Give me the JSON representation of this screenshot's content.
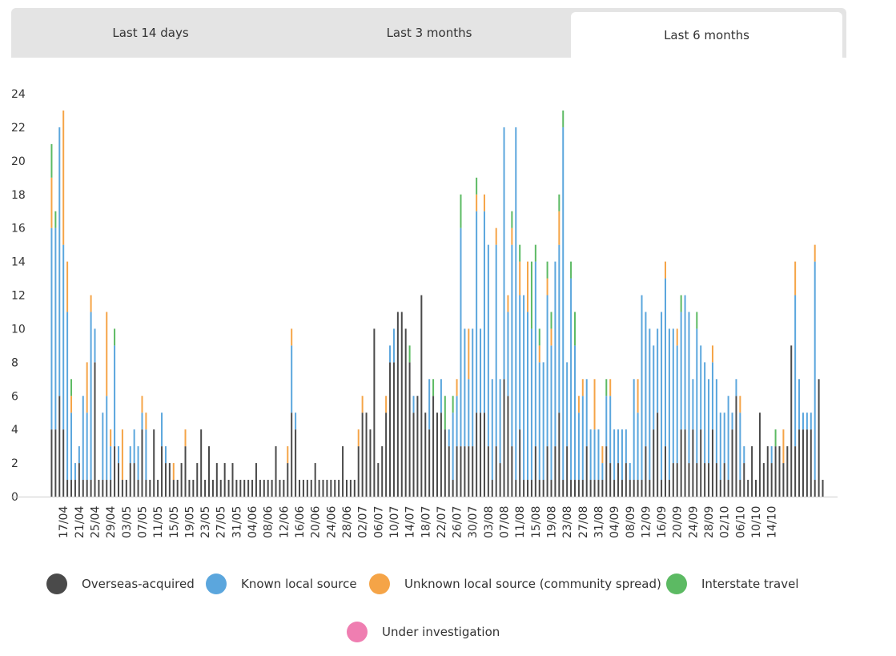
{
  "tabs": [
    {
      "label": "Last 14 days",
      "active": false
    },
    {
      "label": "Last 3 months",
      "active": false
    },
    {
      "label": "Last 6 months",
      "active": true
    }
  ],
  "legend": [
    {
      "label": "Overseas-acquired",
      "color": "#4a4a4a"
    },
    {
      "label": "Known local source",
      "color": "#5ba6dd"
    },
    {
      "label": "Unknown local source (community spread)",
      "color": "#f5a447"
    },
    {
      "label": "Interstate travel",
      "color": "#5cba63"
    },
    {
      "label": "Under investigation",
      "color": "#ef7eb1"
    }
  ],
  "chart_data": {
    "type": "bar",
    "stacked": true,
    "ylim": [
      0,
      24
    ],
    "yticks": [
      0,
      2,
      4,
      6,
      8,
      10,
      12,
      14,
      16,
      18,
      20,
      22,
      24
    ],
    "x_tick_labels": [
      "17/04",
      "21/04",
      "25/04",
      "29/04",
      "03/05",
      "07/05",
      "11/05",
      "15/05",
      "19/05",
      "23/05",
      "27/05",
      "31/05",
      "04/06",
      "08/06",
      "12/06",
      "16/06",
      "20/06",
      "24/06",
      "28/06",
      "02/07",
      "06/07",
      "10/07",
      "14/07",
      "18/07",
      "22/07",
      "26/07",
      "30/07",
      "03/08",
      "07/08",
      "11/08",
      "15/08",
      "19/08",
      "23/08",
      "27/08",
      "31/08",
      "04/09",
      "08/09",
      "12/09",
      "16/09",
      "20/09",
      "24/09",
      "28/09",
      "02/10",
      "06/10",
      "10/10",
      "14/10"
    ],
    "first_date": "14/04",
    "tick_offset": 3,
    "tick_every": 4,
    "series": [
      {
        "name": "Overseas-acquired",
        "values": [
          4,
          4,
          6,
          4,
          1,
          1,
          1,
          2,
          1,
          1,
          1,
          8,
          1,
          1,
          1,
          1,
          3,
          2,
          1,
          1,
          2,
          2,
          1,
          4,
          1,
          1,
          4,
          1,
          3,
          2,
          2,
          1,
          1,
          2,
          3,
          1,
          1,
          2,
          4,
          1,
          3,
          1,
          2,
          1,
          2,
          1,
          2,
          1,
          1,
          1,
          1,
          1,
          2,
          1,
          1,
          1,
          1,
          3,
          1,
          1,
          2,
          5,
          4,
          1,
          1,
          1,
          1,
          2,
          1,
          1,
          1,
          1,
          1,
          1,
          3,
          1,
          1,
          1,
          3,
          5,
          5,
          4,
          10,
          2,
          3,
          5,
          8,
          8,
          11,
          11,
          10,
          8,
          5,
          6,
          12,
          5,
          4,
          6,
          5,
          5,
          4,
          3,
          1,
          3,
          3,
          3,
          3,
          3,
          5,
          5,
          5,
          3,
          1,
          3,
          2,
          7,
          6,
          3,
          1,
          4,
          1,
          1,
          1,
          3,
          1,
          1,
          3,
          1,
          3,
          5,
          1,
          3,
          1,
          1,
          1,
          1,
          3,
          1,
          1,
          1,
          1,
          3,
          2,
          1,
          2,
          1,
          2,
          1,
          1,
          1,
          1,
          3,
          1,
          4,
          5,
          1,
          3,
          1,
          2,
          2,
          4,
          4,
          2,
          4,
          2,
          4,
          2,
          2,
          4,
          2,
          1,
          2,
          1,
          4,
          6,
          1,
          2,
          1,
          3,
          1,
          5,
          2,
          3,
          2,
          3,
          3,
          2,
          3,
          9,
          3,
          4,
          4,
          4,
          4,
          1,
          7,
          1
        ],
        "note": "values in data units (cases)"
      },
      {
        "name": "Known local source",
        "values": [
          12,
          12,
          16,
          11,
          10,
          4,
          1,
          1,
          5,
          4,
          10,
          2,
          0,
          4,
          5,
          2,
          6,
          1,
          0,
          0,
          1,
          2,
          2,
          1,
          3,
          0,
          0,
          0,
          2,
          1,
          0,
          0,
          0,
          0,
          0,
          0,
          0,
          0,
          0,
          0,
          0,
          0,
          0,
          0,
          0,
          0,
          0,
          0,
          0,
          0,
          0,
          0,
          0,
          0,
          0,
          0,
          0,
          0,
          0,
          0,
          0,
          4,
          1,
          0,
          0,
          0,
          0,
          0,
          0,
          0,
          0,
          0,
          0,
          0,
          0,
          0,
          0,
          0,
          0,
          0,
          0,
          0,
          0,
          0,
          0,
          0,
          1,
          2,
          0,
          0,
          0,
          0,
          1,
          0,
          0,
          0,
          3,
          0,
          0,
          2,
          0,
          1,
          4,
          3,
          13,
          7,
          4,
          7,
          12,
          5,
          12,
          12,
          6,
          12,
          5,
          15,
          5,
          12,
          21,
          8,
          11,
          10,
          9,
          11,
          7,
          7,
          9,
          8,
          11,
          10,
          21,
          5,
          12,
          8,
          4,
          5,
          4,
          3,
          3,
          3,
          1,
          3,
          4,
          3,
          2,
          3,
          2,
          1,
          6,
          4,
          11,
          8,
          9,
          5,
          5,
          10,
          10,
          9,
          8,
          7,
          7,
          8,
          9,
          3,
          8,
          5,
          6,
          5,
          4,
          5,
          4,
          3,
          5,
          1,
          1,
          4,
          1,
          0,
          0,
          0,
          0,
          0,
          0,
          1,
          0,
          0,
          0,
          0,
          0,
          9,
          3,
          1,
          1,
          1,
          13,
          0
        ],
        "note": ""
      },
      {
        "name": "Unknown local source (community spread)",
        "values": [
          3,
          0,
          0,
          8,
          3,
          1,
          0,
          0,
          0,
          3,
          1,
          0,
          0,
          0,
          5,
          1,
          0,
          0,
          3,
          0,
          0,
          0,
          0,
          1,
          1,
          0,
          0,
          0,
          0,
          0,
          0,
          1,
          0,
          0,
          1,
          0,
          0,
          0,
          0,
          0,
          0,
          0,
          0,
          0,
          0,
          0,
          0,
          0,
          0,
          0,
          0,
          0,
          0,
          0,
          0,
          0,
          0,
          0,
          0,
          0,
          1,
          1,
          0,
          0,
          0,
          0,
          0,
          0,
          0,
          0,
          0,
          0,
          0,
          0,
          0,
          0,
          0,
          0,
          1,
          1,
          0,
          0,
          0,
          0,
          0,
          1,
          0,
          0,
          0,
          0,
          0,
          0,
          0,
          0,
          0,
          0,
          0,
          0,
          0,
          0,
          0,
          0,
          0,
          1,
          0,
          0,
          3,
          0,
          1,
          0,
          1,
          0,
          0,
          1,
          0,
          0,
          1,
          1,
          0,
          2,
          0,
          3,
          0,
          0,
          1,
          0,
          1,
          1,
          0,
          2,
          0,
          0,
          0,
          0,
          1,
          1,
          0,
          0,
          3,
          0,
          1,
          0,
          1,
          0,
          0,
          0,
          0,
          0,
          0,
          2,
          0,
          0,
          0,
          0,
          0,
          0,
          1,
          0,
          0,
          1,
          0,
          0,
          0,
          0,
          0,
          0,
          0,
          0,
          1,
          0,
          0,
          0,
          0,
          0,
          0,
          1,
          0,
          0,
          0,
          0,
          0,
          0,
          0,
          0,
          0,
          0,
          2,
          0,
          0,
          2,
          0,
          0,
          0,
          0,
          1,
          0
        ],
        "note": ""
      },
      {
        "name": "Interstate travel",
        "values": [
          2,
          1,
          0,
          0,
          0,
          1,
          0,
          0,
          0,
          0,
          0,
          0,
          0,
          0,
          0,
          0,
          1,
          0,
          0,
          0,
          0,
          0,
          0,
          0,
          0,
          0,
          0,
          0,
          0,
          0,
          0,
          0,
          0,
          0,
          0,
          0,
          0,
          0,
          0,
          0,
          0,
          0,
          0,
          0,
          0,
          0,
          0,
          0,
          0,
          0,
          0,
          0,
          0,
          0,
          0,
          0,
          0,
          0,
          0,
          0,
          0,
          0,
          0,
          0,
          0,
          0,
          0,
          0,
          0,
          0,
          0,
          0,
          0,
          0,
          0,
          0,
          0,
          0,
          0,
          0,
          0,
          0,
          0,
          0,
          0,
          0,
          0,
          0,
          0,
          0,
          0,
          1,
          0,
          0,
          0,
          0,
          0,
          1,
          0,
          0,
          2,
          0,
          1,
          0,
          2,
          0,
          0,
          0,
          1,
          0,
          0,
          0,
          0,
          0,
          0,
          0,
          0,
          1,
          0,
          1,
          0,
          0,
          4,
          1,
          1,
          0,
          1,
          1,
          0,
          1,
          1,
          0,
          1,
          2,
          0,
          0,
          0,
          0,
          0,
          0,
          0,
          1,
          0,
          0,
          0,
          0,
          0,
          0,
          0,
          0,
          0,
          0,
          0,
          0,
          0,
          0,
          0,
          0,
          0,
          0,
          1,
          0,
          0,
          0,
          1,
          0,
          0,
          0,
          0,
          0,
          0,
          0,
          0,
          0,
          0,
          0,
          0,
          0,
          0,
          0,
          0,
          0,
          0,
          0,
          1,
          0,
          0,
          0,
          0,
          0,
          0,
          0,
          0,
          0,
          0,
          0
        ],
        "note": ""
      },
      {
        "name": "Under investigation",
        "values": [],
        "note": ""
      }
    ]
  }
}
